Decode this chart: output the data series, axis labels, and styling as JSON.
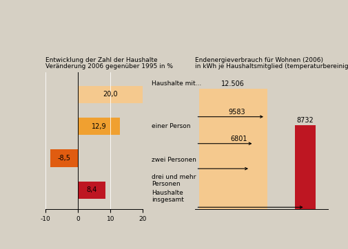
{
  "background_color": "#d6d0c4",
  "left_title1": "Entwicklung der Zahl der Haushalte",
  "left_title2": "Veränderung 2006 gegenüber 1995 in %",
  "right_title1": "Endenergieverbrauch für Wohnen (2006)",
  "right_title2": "in kWh je Haushaltsmitglied (temperaturbereinigt)",
  "left_bars": [
    {
      "value": 20.0,
      "color": "#f5c98e",
      "text": "20,0"
    },
    {
      "value": 12.9,
      "color": "#f0a030",
      "text": "12,9"
    },
    {
      "value": -8.5,
      "color": "#e05c10",
      "text": "-8,5"
    },
    {
      "value": 8.4,
      "color": "#be1622",
      "text": "8,4"
    }
  ],
  "right_bars": [
    {
      "value": 12506,
      "color": "#f5c98e",
      "text": "12.506"
    },
    {
      "value": 9583,
      "color": "#f0a030",
      "text": "9583"
    },
    {
      "value": 6801,
      "color": "#e05c10",
      "text": "6801"
    },
    {
      "value": 8732,
      "color": "#be1622",
      "text": "8732"
    }
  ],
  "row_labels": [
    "Haushalte mit...",
    "einer Person",
    "zwei Personen",
    "drei und mehr\nPersonen",
    "Haushalte\ninsgesamt"
  ],
  "left_xlim": [
    -10,
    20
  ],
  "left_xticks": [
    -10,
    0,
    10,
    20
  ],
  "label_fontsize": 6.5,
  "title_fontsize": 6.5,
  "value_fontsize": 7.0
}
